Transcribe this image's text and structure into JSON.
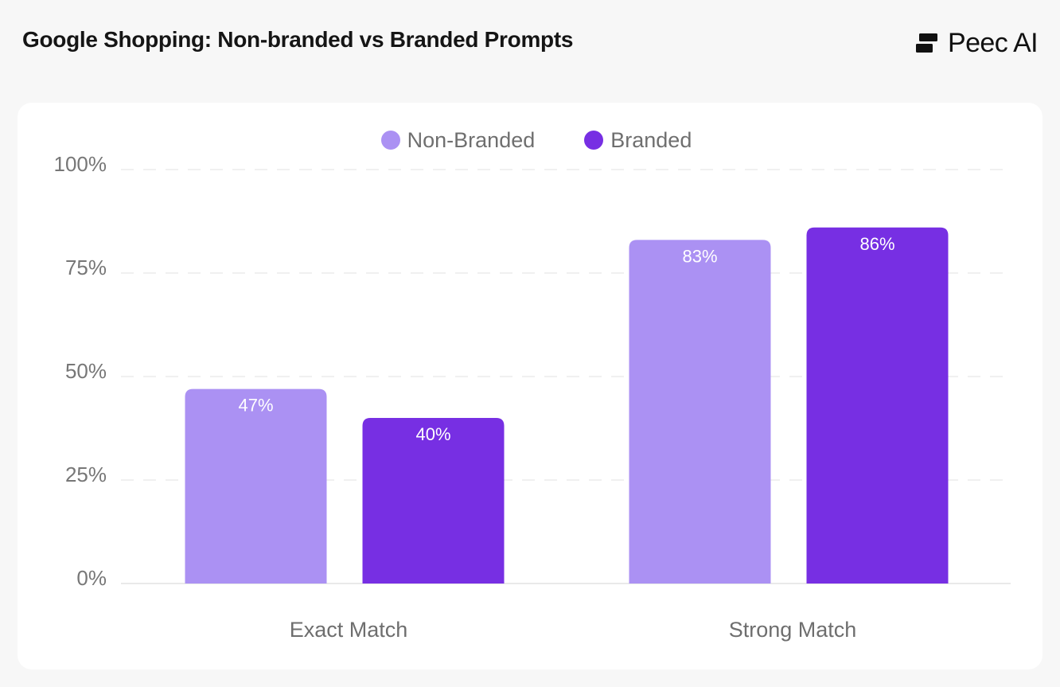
{
  "header": {
    "title": "Google Shopping: Non-branded vs Branded Prompts",
    "brand_name": "Peec AI",
    "brand_icon": "peec-logo-icon"
  },
  "colors": {
    "non_branded": "#ab91f3",
    "branded": "#772fe3",
    "grid": "#e7e7e7",
    "baseline": "#e2e2e2"
  },
  "chart_data": {
    "type": "bar",
    "title": "Google Shopping: Non-branded vs Branded Prompts",
    "xlabel": "",
    "ylabel": "",
    "categories": [
      "Exact Match",
      "Strong Match"
    ],
    "series": [
      {
        "name": "Non-Branded",
        "values": [
          47,
          83
        ],
        "value_labels": [
          "47%",
          "83%"
        ]
      },
      {
        "name": "Branded",
        "values": [
          40,
          86
        ],
        "value_labels": [
          "40%",
          "86%"
        ]
      }
    ],
    "ylim": [
      0,
      100
    ],
    "yticks": [
      0,
      25,
      50,
      75,
      100
    ],
    "ytick_labels": [
      "0%",
      "25%",
      "50%",
      "75%",
      "100%"
    ],
    "grid": true,
    "legend_position": "top-center"
  }
}
